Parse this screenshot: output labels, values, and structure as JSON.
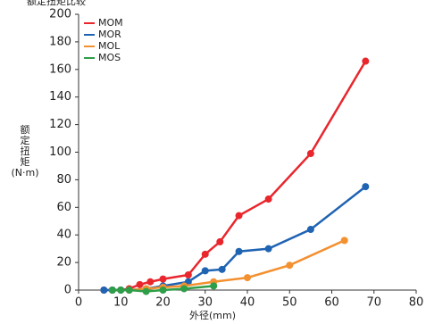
{
  "chart_data": {
    "type": "line",
    "title": "额定扭矩比较",
    "x_label": "外径(mm)",
    "y_label": "额定扭矩(N·m)",
    "xlim": [
      0,
      80
    ],
    "xticks": [
      0,
      10,
      20,
      30,
      40,
      50,
      60,
      70,
      80
    ],
    "ylim": [
      0,
      200
    ],
    "yticks": [
      0,
      20,
      40,
      60,
      80,
      100,
      120,
      140,
      160,
      180,
      200
    ],
    "grid": false,
    "legend": "upper left",
    "series": [
      {
        "name": "MOM",
        "color": "#e8262c",
        "x": [
          6,
          8,
          10,
          12,
          14.5,
          17,
          20,
          26,
          30,
          33.5,
          38,
          45,
          55,
          68
        ],
        "values": [
          0,
          0,
          0,
          1,
          4,
          6,
          8,
          11,
          26,
          35,
          54,
          66,
          99,
          166
        ]
      },
      {
        "name": "MOR",
        "color": "#1f63b3",
        "x": [
          6,
          8,
          10,
          12,
          16,
          20,
          26,
          30,
          34,
          38,
          45,
          55,
          68
        ],
        "values": [
          0,
          0,
          0,
          0,
          1,
          3,
          6,
          14,
          15,
          28,
          30,
          44,
          75
        ]
      },
      {
        "name": "MOL",
        "color": "#f39030",
        "x": [
          12,
          16,
          20,
          25,
          32,
          40,
          50,
          63
        ],
        "values": [
          0,
          1,
          2,
          3,
          6,
          9,
          18,
          36
        ]
      },
      {
        "name": "MOS",
        "color": "#2e9e48",
        "x": [
          8,
          10,
          12,
          16,
          20,
          25,
          32
        ],
        "values": [
          0,
          0,
          0,
          -1,
          0,
          1,
          3
        ]
      }
    ]
  }
}
